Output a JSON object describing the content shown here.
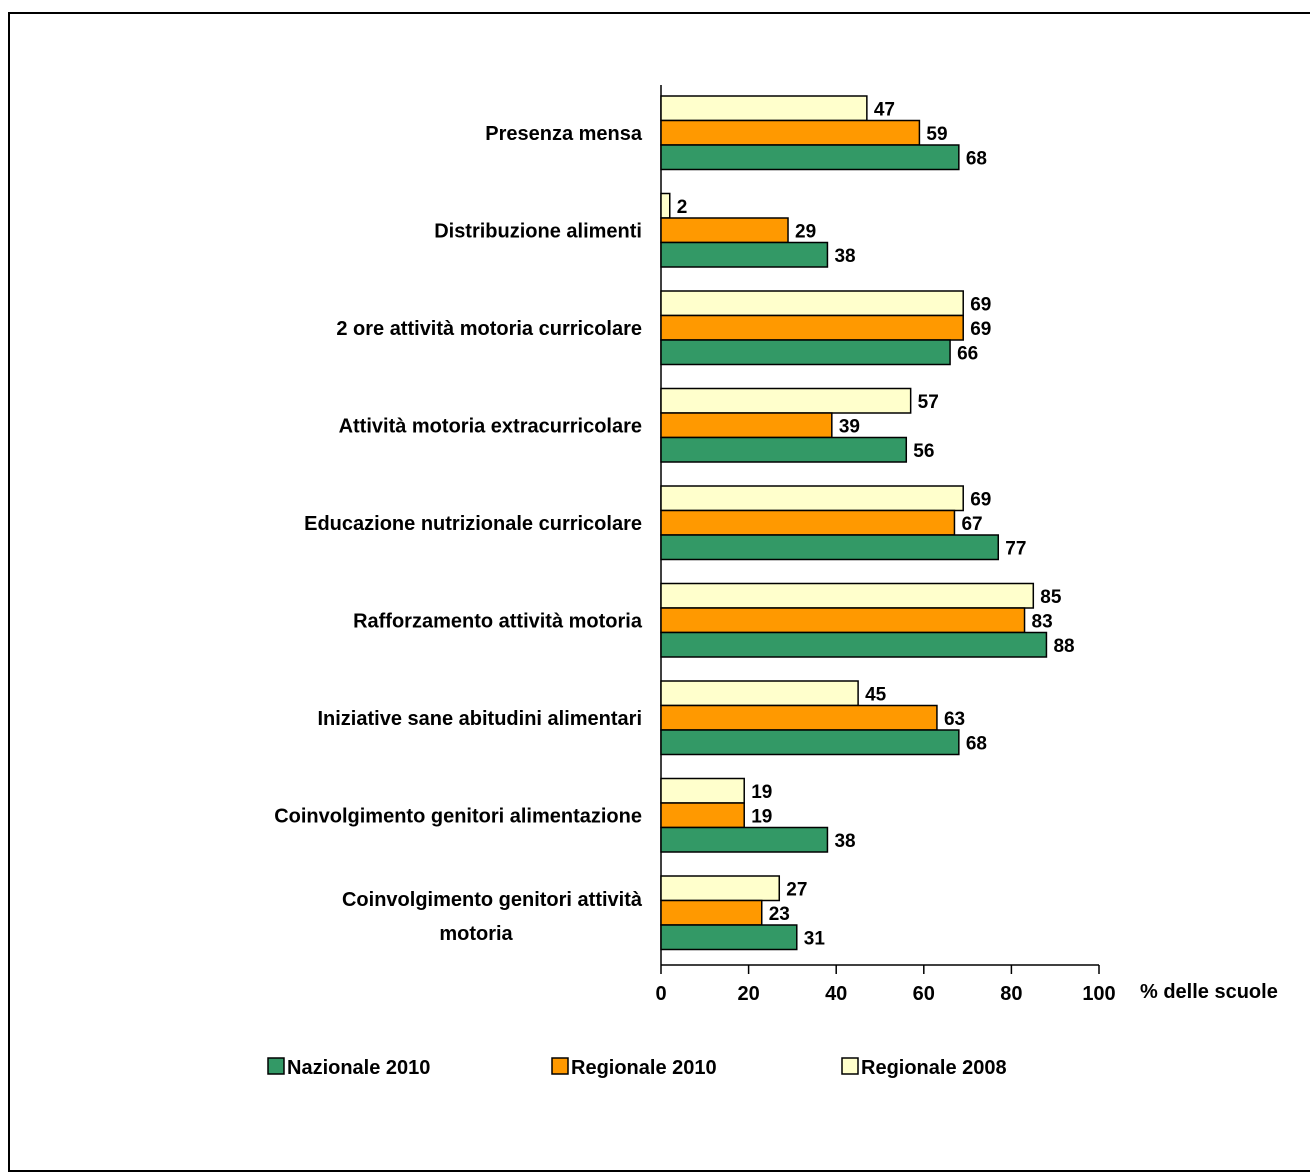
{
  "chart_data": {
    "type": "bar",
    "orientation": "horizontal",
    "categories": [
      "Presenza mensa",
      "Distribuzione alimenti",
      "2 ore attività motoria curricolare",
      "Attività motoria extracurricolare",
      "Educazione nutrizionale curricolare",
      "Rafforzamento attività motoria",
      "Iniziative sane abitudini alimentari",
      "Coinvolgimento genitori alimentazione",
      "Coinvolgimento genitori attività motoria"
    ],
    "series": [
      {
        "name": "Regionale 2008",
        "color": "#ffffcc",
        "values": [
          47,
          2,
          69,
          57,
          69,
          85,
          45,
          19,
          27
        ]
      },
      {
        "name": "Regionale 2010",
        "color": "#ff9900",
        "values": [
          59,
          29,
          69,
          39,
          67,
          83,
          63,
          19,
          23
        ]
      },
      {
        "name": "Nazionale 2010",
        "color": "#339966",
        "values": [
          68,
          38,
          66,
          56,
          77,
          88,
          68,
          38,
          31
        ]
      }
    ],
    "legend_order": [
      "Nazionale 2010",
      "Regionale 2010",
      "Regionale 2008"
    ],
    "legend_position": "bottom",
    "xlabel": "% delle scuole",
    "xlim": [
      0,
      100
    ],
    "xticks": [
      0,
      20,
      40,
      60,
      80,
      100
    ],
    "grid": false,
    "data_labels": true
  }
}
